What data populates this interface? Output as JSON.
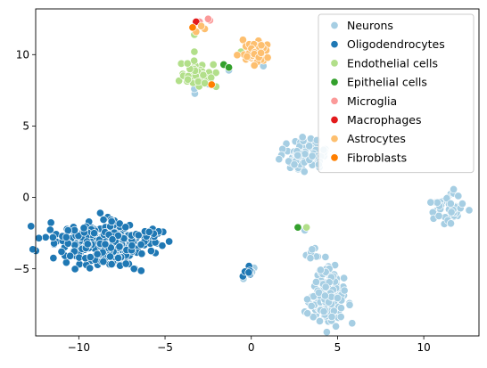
{
  "chart_data": {
    "type": "scatter",
    "title": "",
    "xlabel": "",
    "ylabel": "",
    "xlim": [
      -12.5,
      13.2
    ],
    "ylim": [
      -9.7,
      13.2
    ],
    "xticks": [
      -10,
      -5,
      0,
      5,
      10
    ],
    "yticks": [
      -5,
      0,
      5,
      10
    ],
    "grid": false,
    "legend": "top-right",
    "point_edge_color": "#ffffff",
    "series": [
      {
        "name": "Neurons",
        "color": "#a6cee3",
        "clusters": [
          {
            "cx": 3.0,
            "cy": 2.9,
            "sx": 0.6,
            "sy": 0.55,
            "n": 100
          },
          {
            "cx": 4.4,
            "cy": -6.9,
            "sx": 0.5,
            "sy": 1.0,
            "n": 170
          },
          {
            "cx": 3.5,
            "cy": -3.8,
            "sx": 0.25,
            "sy": 0.5,
            "n": 10
          },
          {
            "cx": 11.3,
            "cy": -0.8,
            "sx": 0.5,
            "sy": 0.45,
            "n": 45
          },
          {
            "cx": -3.0,
            "cy": 8.0,
            "sx": 0.3,
            "sy": 0.3,
            "n": 6
          },
          {
            "cx": 0.0,
            "cy": -5.3,
            "sx": 0.25,
            "sy": 0.25,
            "n": 5
          }
        ],
        "points": [
          [
            3.8,
            4.0
          ],
          [
            3.1,
            -2.3
          ],
          [
            -1.3,
            8.9
          ],
          [
            0.7,
            9.2
          ],
          [
            -3.3,
            7.6
          ],
          [
            12.0,
            0.1
          ]
        ]
      },
      {
        "name": "Oligodendrocytes",
        "color": "#1f78b4",
        "clusters": [
          {
            "cx": -8.6,
            "cy": -3.3,
            "sx": 1.35,
            "sy": 0.75,
            "n": 330
          },
          {
            "cx": -5.6,
            "cy": -2.6,
            "sx": 0.35,
            "sy": 0.3,
            "n": 12
          },
          {
            "cx": -0.3,
            "cy": -5.2,
            "sx": 0.2,
            "sy": 0.15,
            "n": 8
          }
        ],
        "points": [
          [
            -11.5,
            -2.8
          ],
          [
            -11.0,
            -3.8
          ],
          [
            -10.5,
            -4.1
          ],
          [
            -6.8,
            -5.0
          ],
          [
            -3.0,
            8.9
          ]
        ]
      },
      {
        "name": "Endothelial cells",
        "color": "#b2df8a",
        "clusters": [
          {
            "cx": -3.1,
            "cy": 8.6,
            "sx": 0.45,
            "sy": 0.5,
            "n": 40
          }
        ],
        "points": [
          [
            -3.3,
            10.2
          ],
          [
            -3.3,
            11.4
          ],
          [
            -2.2,
            9.3
          ],
          [
            -0.6,
            10.2
          ],
          [
            -2.7,
            8.0
          ],
          [
            3.2,
            -2.1
          ]
        ]
      },
      {
        "name": "Epithelial cells",
        "color": "#33a02c",
        "clusters": [],
        "points": [
          [
            -1.6,
            9.3
          ],
          [
            -1.3,
            9.1
          ],
          [
            2.7,
            -2.1
          ]
        ]
      },
      {
        "name": "Microglia",
        "color": "#fb9a99",
        "clusters": [],
        "points": [
          [
            -2.4,
            12.4
          ],
          [
            -2.5,
            12.5
          ],
          [
            -3.0,
            12.3
          ]
        ]
      },
      {
        "name": "Macrophages",
        "color": "#e31a1c",
        "clusters": [],
        "points": [
          [
            -3.2,
            12.3
          ]
        ]
      },
      {
        "name": "Astrocytes",
        "color": "#fdbf6f",
        "clusters": [
          {
            "cx": 0.3,
            "cy": 10.2,
            "sx": 0.35,
            "sy": 0.45,
            "n": 55
          }
        ],
        "points": [
          [
            -2.7,
            11.8
          ],
          [
            -3.2,
            11.6
          ],
          [
            -2.9,
            12.0
          ]
        ]
      },
      {
        "name": "Fibroblasts",
        "color": "#ff7f00",
        "clusters": [],
        "points": [
          [
            -3.4,
            11.9
          ],
          [
            -2.3,
            7.9
          ]
        ]
      }
    ]
  }
}
